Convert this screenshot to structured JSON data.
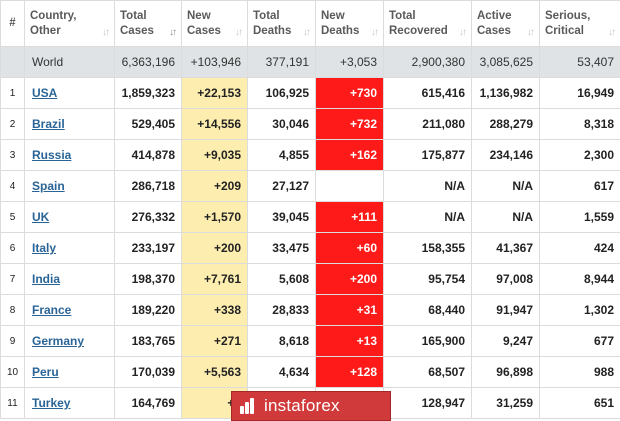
{
  "table": {
    "headers": {
      "idx": "#",
      "country": "Country, Other",
      "total_cases": "Total Cases",
      "new_cases": "New Cases",
      "total_deaths": "Total Deaths",
      "new_deaths": "New Deaths",
      "total_recovered": "Total Recovered",
      "active_cases": "Active Cases",
      "serious": "Serious, Critical"
    },
    "world": {
      "country": "World",
      "total_cases": "6,363,196",
      "new_cases": "+103,946",
      "total_deaths": "377,191",
      "new_deaths": "+3,053",
      "total_recovered": "2,900,380",
      "active_cases": "3,085,625",
      "serious": "53,407"
    },
    "rows": [
      {
        "idx": "1",
        "country": "USA",
        "total_cases": "1,859,323",
        "new_cases": "+22,153",
        "total_deaths": "106,925",
        "new_deaths": "+730",
        "total_recovered": "615,416",
        "active_cases": "1,136,982",
        "serious": "16,949"
      },
      {
        "idx": "2",
        "country": "Brazil",
        "total_cases": "529,405",
        "new_cases": "+14,556",
        "total_deaths": "30,046",
        "new_deaths": "+732",
        "total_recovered": "211,080",
        "active_cases": "288,279",
        "serious": "8,318"
      },
      {
        "idx": "3",
        "country": "Russia",
        "total_cases": "414,878",
        "new_cases": "+9,035",
        "total_deaths": "4,855",
        "new_deaths": "+162",
        "total_recovered": "175,877",
        "active_cases": "234,146",
        "serious": "2,300"
      },
      {
        "idx": "4",
        "country": "Spain",
        "total_cases": "286,718",
        "new_cases": "+209",
        "total_deaths": "27,127",
        "new_deaths": "",
        "total_recovered": "N/A",
        "active_cases": "N/A",
        "serious": "617"
      },
      {
        "idx": "5",
        "country": "UK",
        "total_cases": "276,332",
        "new_cases": "+1,570",
        "total_deaths": "39,045",
        "new_deaths": "+111",
        "total_recovered": "N/A",
        "active_cases": "N/A",
        "serious": "1,559"
      },
      {
        "idx": "6",
        "country": "Italy",
        "total_cases": "233,197",
        "new_cases": "+200",
        "total_deaths": "33,475",
        "new_deaths": "+60",
        "total_recovered": "158,355",
        "active_cases": "41,367",
        "serious": "424"
      },
      {
        "idx": "7",
        "country": "India",
        "total_cases": "198,370",
        "new_cases": "+7,761",
        "total_deaths": "5,608",
        "new_deaths": "+200",
        "total_recovered": "95,754",
        "active_cases": "97,008",
        "serious": "8,944"
      },
      {
        "idx": "8",
        "country": "France",
        "total_cases": "189,220",
        "new_cases": "+338",
        "total_deaths": "28,833",
        "new_deaths": "+31",
        "total_recovered": "68,440",
        "active_cases": "91,947",
        "serious": "1,302"
      },
      {
        "idx": "9",
        "country": "Germany",
        "total_cases": "183,765",
        "new_cases": "+271",
        "total_deaths": "8,618",
        "new_deaths": "+13",
        "total_recovered": "165,900",
        "active_cases": "9,247",
        "serious": "677"
      },
      {
        "idx": "10",
        "country": "Peru",
        "total_cases": "170,039",
        "new_cases": "+5,563",
        "total_deaths": "4,634",
        "new_deaths": "+128",
        "total_recovered": "68,507",
        "active_cases": "96,898",
        "serious": "988"
      },
      {
        "idx": "11",
        "country": "Turkey",
        "total_cases": "164,769",
        "new_cases": "+8",
        "total_deaths": "",
        "new_deaths": "",
        "total_recovered": "128,947",
        "active_cases": "31,259",
        "serious": "651"
      }
    ]
  },
  "watermark": {
    "brand": "instaforex"
  },
  "colors": {
    "new_cases_bg": "#fdeeb0",
    "new_deaths_bg": "#ff1a1a",
    "world_bg": "#dfe3e6",
    "link": "#2a6496",
    "watermark_bg": "#d13a3a"
  },
  "icons": {
    "sort": "sort-arrows-icon",
    "watermark_logo": "instaforex-logo-icon"
  }
}
